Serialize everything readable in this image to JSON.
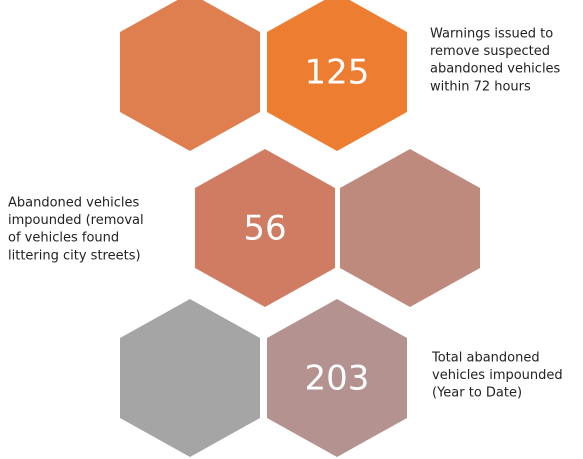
{
  "items": [
    {
      "value": "125",
      "description": [
        "Warnings issued to",
        "remove suspected",
        "abandoned vehicles",
        "within 72 hours"
      ]
    },
    {
      "value": "56",
      "description": [
        "Abandoned vehicles",
        "impounded (removal",
        "of vehicles found",
        "littering city streets)"
      ]
    },
    {
      "value": "203",
      "description": [
        "Total abandoned",
        "vehicles impounded",
        "(Year to Date)"
      ]
    }
  ]
}
